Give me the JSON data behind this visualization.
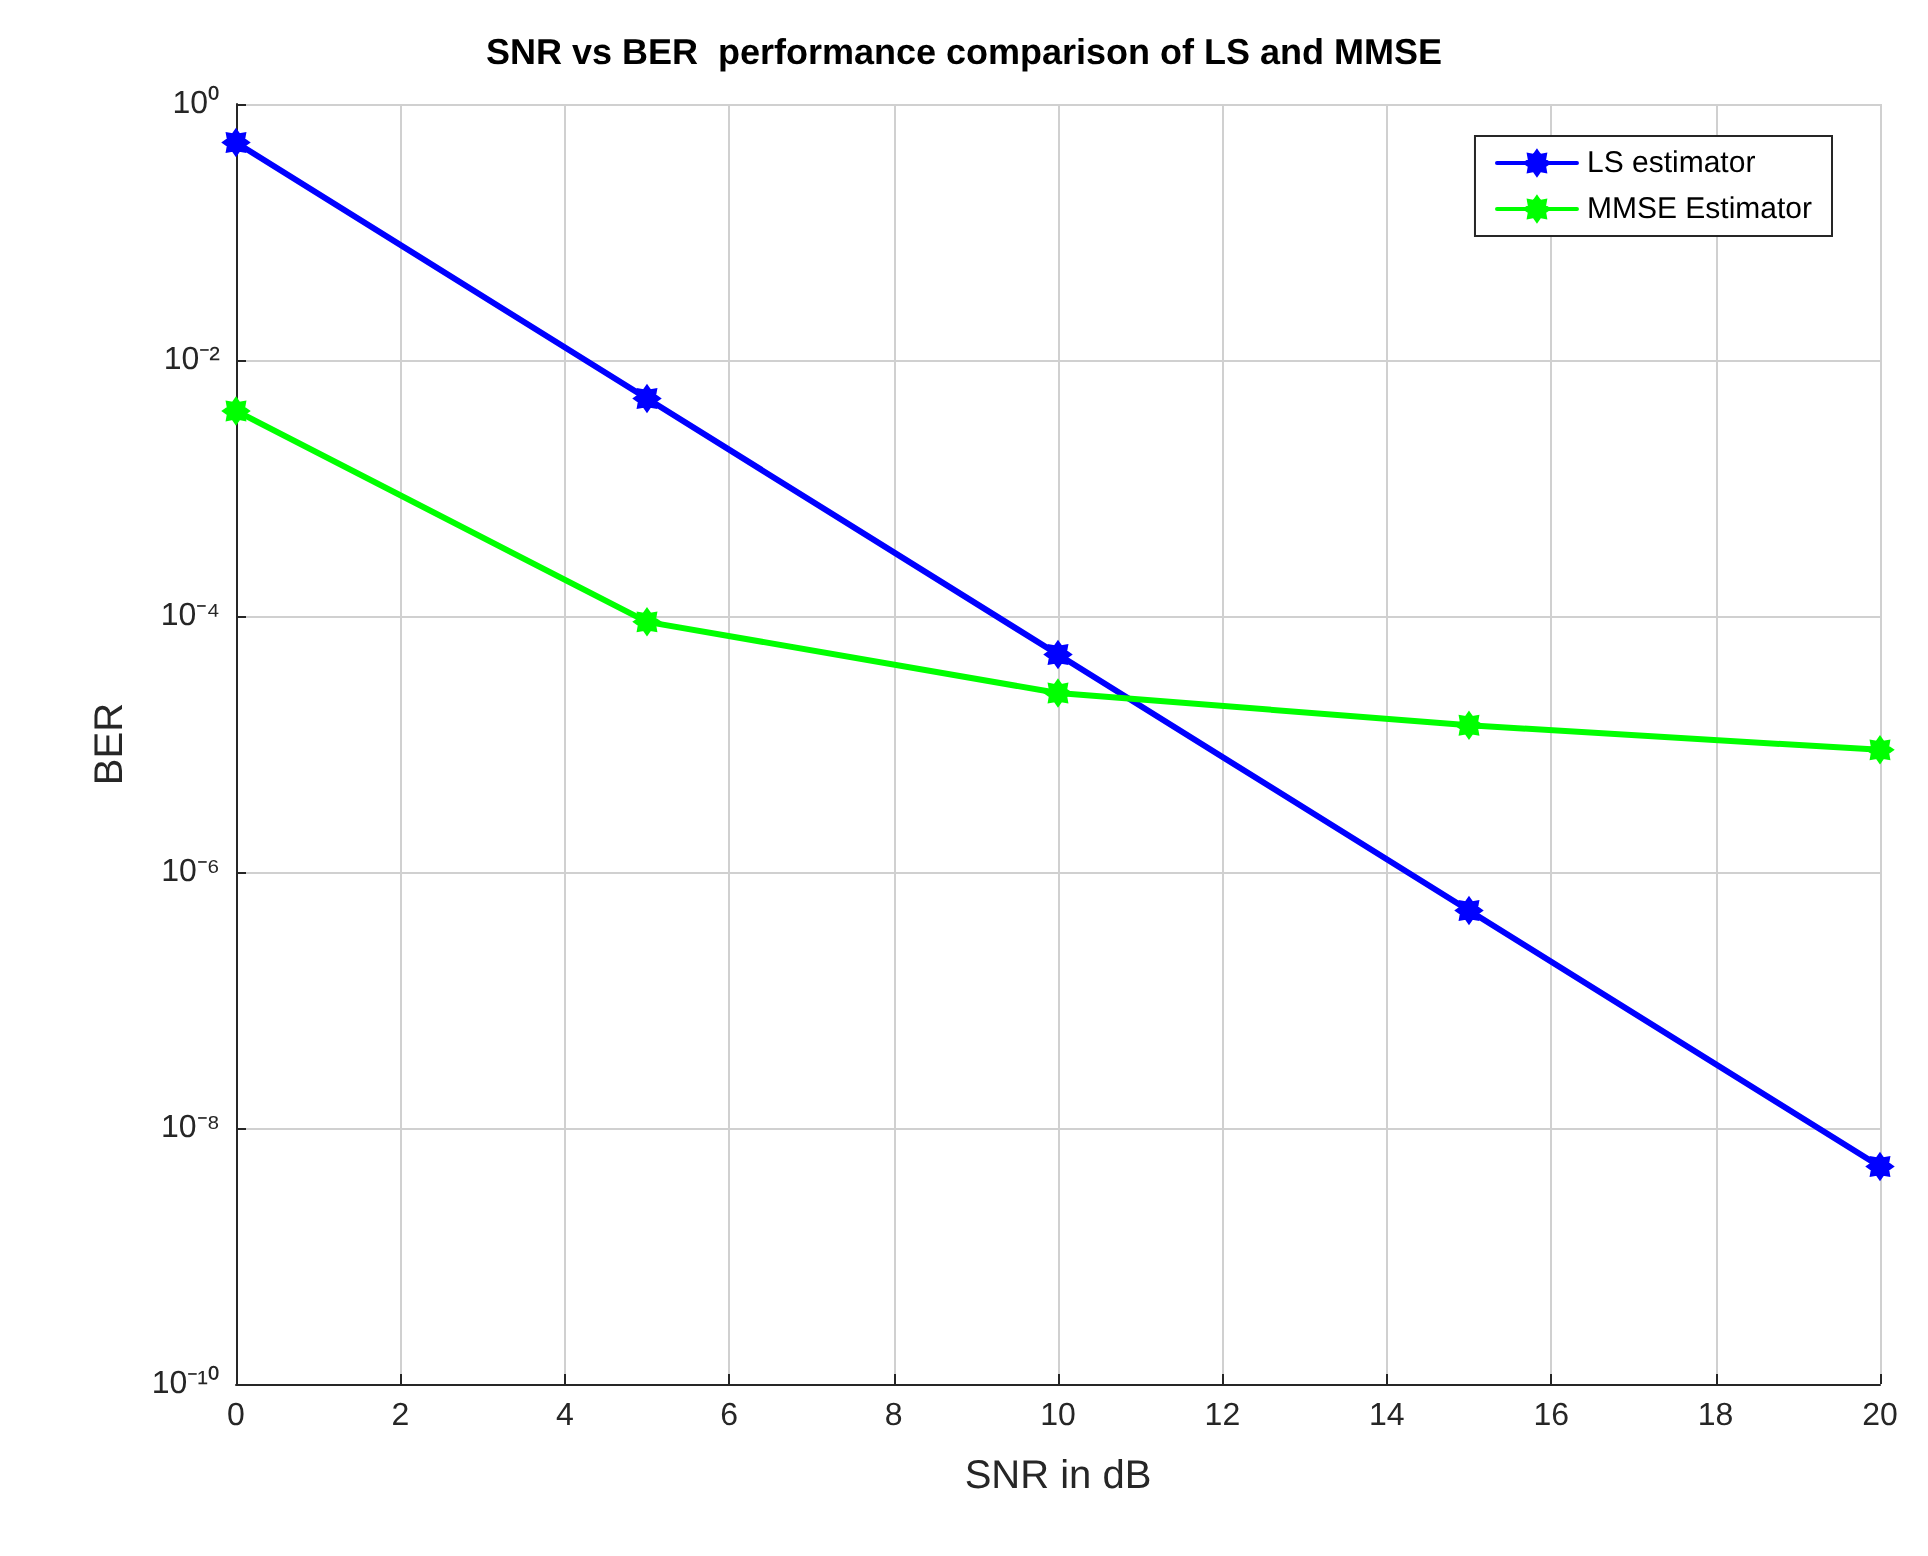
{
  "chart_data": {
    "type": "line",
    "title": "SNR vs BER  performance comparison of LS and MMSE",
    "xlabel": "SNR in dB",
    "ylabel": "BER",
    "x": [
      0,
      5,
      10,
      15,
      20
    ],
    "series": [
      {
        "name": "LS estimator",
        "color": "#0000ff",
        "values": [
          0.5,
          0.005,
          5e-05,
          5e-07,
          5e-09
        ]
      },
      {
        "name": "MMSE Estimator",
        "color": "#00ff00",
        "values": [
          0.004,
          9e-05,
          2.5e-05,
          1.4e-05,
          9e-06
        ]
      }
    ],
    "log": "y",
    "xlim": [
      0,
      20
    ],
    "xticks": [
      0,
      2,
      4,
      6,
      8,
      10,
      12,
      14,
      16,
      18,
      20
    ],
    "ylim": [
      1e-10,
      1
    ],
    "yticks": [
      {
        "value": 1e-10,
        "label": "10⁻¹⁰"
      },
      {
        "value": 1e-08,
        "label": "10⁻⁸"
      },
      {
        "value": 1e-06,
        "label": "10⁻⁶"
      },
      {
        "value": 0.0001,
        "label": "10⁻⁴"
      },
      {
        "value": 0.01,
        "label": "10⁻²"
      },
      {
        "value": 1,
        "label": "10⁰"
      }
    ],
    "grid": true,
    "legend": "top right",
    "marker": "star",
    "line_style": "solid"
  }
}
